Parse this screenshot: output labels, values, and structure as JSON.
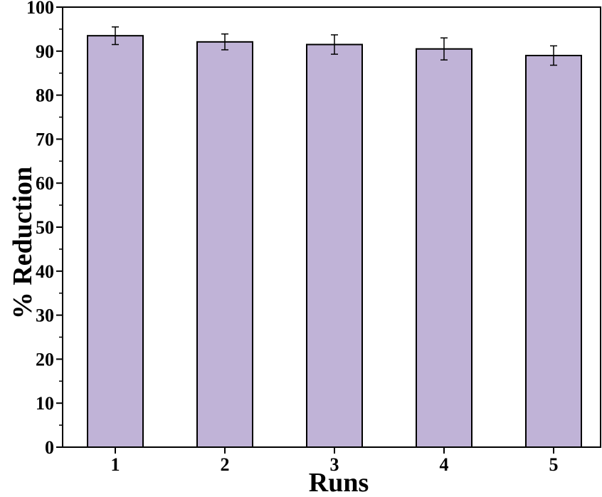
{
  "chart_data": {
    "type": "bar",
    "categories": [
      "1",
      "2",
      "3",
      "4",
      "5"
    ],
    "values": [
      93.5,
      92.1,
      91.5,
      90.5,
      89.0
    ],
    "error": [
      2.0,
      1.8,
      2.2,
      2.5,
      2.2
    ],
    "title": "",
    "xlabel": "Runs",
    "ylabel": "% Reduction",
    "ylim": [
      0,
      100
    ],
    "yticks": [
      0,
      10,
      20,
      30,
      40,
      50,
      60,
      70,
      80,
      90,
      100
    ],
    "grid": false,
    "legend": "none",
    "bar_color": "#c0b3d7",
    "edge_color": "#000000"
  }
}
